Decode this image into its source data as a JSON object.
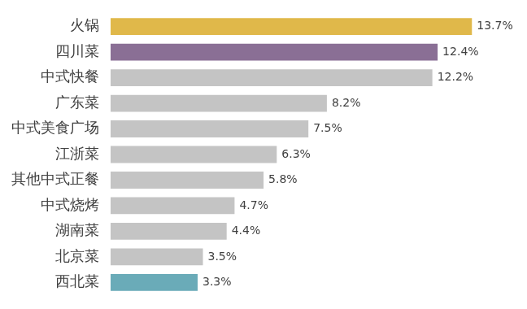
{
  "chart_data": {
    "type": "bar",
    "orientation": "horizontal",
    "categories": [
      "火锅",
      "四川菜",
      "中式快餐",
      "广东菜",
      "中式美食广场",
      "江浙菜",
      "其他中式正餐",
      "中式烧烤",
      "湖南菜",
      "北京菜",
      "西北菜"
    ],
    "values": [
      13.7,
      12.4,
      12.2,
      8.2,
      7.5,
      6.3,
      5.8,
      4.7,
      4.4,
      3.5,
      3.3
    ],
    "value_labels": [
      "13.7%",
      "12.4%",
      "12.2%",
      "8.2%",
      "7.5%",
      "6.3%",
      "5.8%",
      "4.7%",
      "4.4%",
      "3.5%",
      "3.3%"
    ],
    "colors": [
      "#e0b84a",
      "#8a6f95",
      "#c4c4c4",
      "#c4c4c4",
      "#c4c4c4",
      "#c4c4c4",
      "#c4c4c4",
      "#c4c4c4",
      "#c4c4c4",
      "#c4c4c4",
      "#6aabb8"
    ],
    "data_labels": true,
    "grid": false,
    "tick_labels": "y"
  }
}
